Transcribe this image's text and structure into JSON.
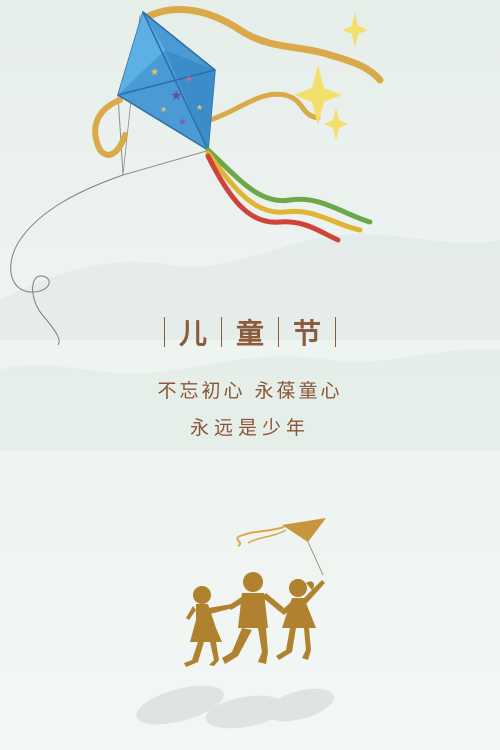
{
  "poster": {
    "title_chars": [
      "儿",
      "童",
      "节"
    ],
    "line1": "不忘初心 永葆童心",
    "line2": "永远是少年"
  },
  "colors": {
    "background": "#e9f0ed",
    "text": "#8a5636",
    "kite_blue": "#4a9ad6",
    "ribbon_gold": "#d9a94a",
    "silhouette_gold": "#b0812f"
  },
  "icons": [
    "kite",
    "sparkle",
    "children-silhouette",
    "small-kite"
  ]
}
